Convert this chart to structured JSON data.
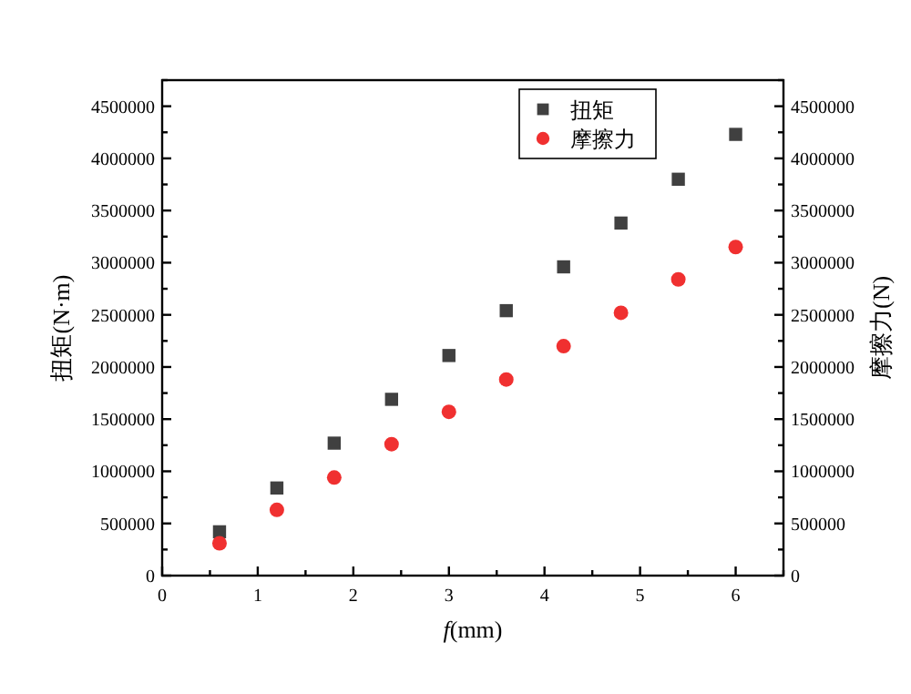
{
  "chart_data": {
    "type": "scatter",
    "xlabel": "*f*(mm)",
    "ylabel": "扭矩(N·m)",
    "y2label": "摩擦力(N)",
    "x": [
      0.6,
      1.2,
      1.8,
      2.4,
      3.0,
      3.6,
      4.2,
      4.8,
      5.4,
      6.0
    ],
    "series": [
      {
        "name": "扭矩",
        "color": "#404040",
        "marker": "square",
        "values": [
          420000,
          840000,
          1270000,
          1690000,
          2110000,
          2540000,
          2960000,
          3380000,
          3800000,
          4230000
        ]
      },
      {
        "name": "摩擦力",
        "color": "#f03030",
        "marker": "circle",
        "axis": "y2",
        "values": [
          310000,
          630000,
          940000,
          1260000,
          1570000,
          1880000,
          2200000,
          2520000,
          2840000,
          3150000
        ]
      }
    ],
    "xlim": [
      0,
      6.5
    ],
    "xticks": [
      0,
      1,
      2,
      3,
      4,
      5,
      6
    ],
    "ylim": [
      0,
      4750000
    ],
    "yticks": [
      0,
      500000,
      1000000,
      1500000,
      2000000,
      2500000,
      3000000,
      3500000,
      4000000,
      4500000
    ],
    "y2lim": [
      0,
      4750000
    ],
    "y2ticks": [
      0,
      500000,
      1000000,
      1500000,
      2000000,
      2500000,
      3000000,
      3500000,
      4000000,
      4500000
    ],
    "grid": false,
    "legend": "top right"
  }
}
